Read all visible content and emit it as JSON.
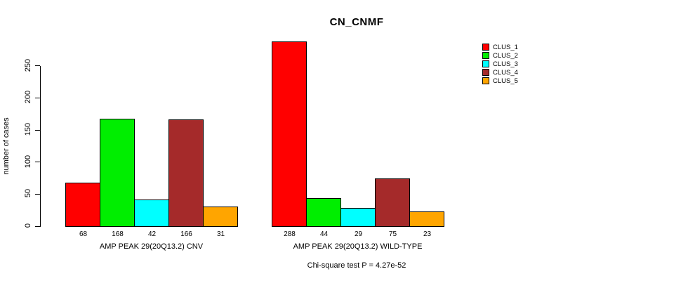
{
  "title": "CN_CNMF",
  "footnote": "Chi-square test P = 4.27e-52",
  "chart_data": {
    "type": "bar",
    "title": "CN_CNMF",
    "xlabel": "",
    "ylabel": "number of cases",
    "ylim": [
      0,
      290
    ],
    "yticks": [
      0,
      50,
      100,
      150,
      200,
      250
    ],
    "grid": false,
    "legend_position": "right",
    "categories": [
      "AMP PEAK 29(20Q13.2) CNV",
      "AMP PEAK 29(20Q13.2) WILD-TYPE"
    ],
    "series": [
      {
        "name": "CLUS_1",
        "color": "#FF0000",
        "values": [
          68,
          288
        ]
      },
      {
        "name": "CLUS_2",
        "color": "#00EE00",
        "values": [
          168,
          44
        ]
      },
      {
        "name": "CLUS_3",
        "color": "#00FFFF",
        "values": [
          42,
          29
        ]
      },
      {
        "name": "CLUS_4",
        "color": "#A52A2A",
        "values": [
          166,
          75
        ]
      },
      {
        "name": "CLUS_5",
        "color": "#FFA500",
        "values": [
          31,
          23
        ]
      }
    ],
    "bar_value_labels": [
      [
        68,
        168,
        42,
        166,
        31
      ],
      [
        288,
        44,
        29,
        75,
        23
      ]
    ],
    "annotation": "Chi-square test P = 4.27e-52"
  },
  "legend": {
    "items": [
      {
        "label": "CLUS_1",
        "color": "#FF0000"
      },
      {
        "label": "CLUS_2",
        "color": "#00EE00"
      },
      {
        "label": "CLUS_3",
        "color": "#00FFFF"
      },
      {
        "label": "CLUS_4",
        "color": "#A52A2A"
      },
      {
        "label": "CLUS_5",
        "color": "#FFA500"
      }
    ]
  }
}
